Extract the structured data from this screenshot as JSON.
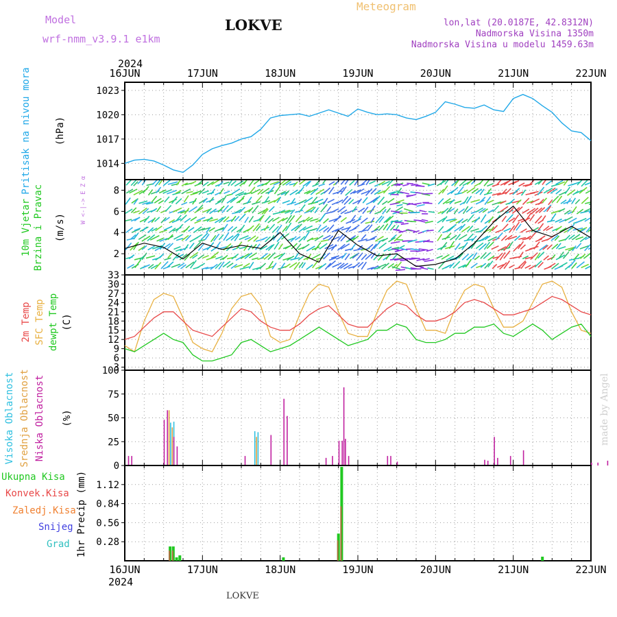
{
  "header": {
    "model_label": "Model",
    "model_name": "wrf-nmm_v3.9.1  e1km",
    "station": "LOKVE",
    "meteogram": "Meteogram",
    "lonlat": "lon,lat (20.0187E, 42.8312N)",
    "altitude": "Nadmorska Visina 1350m",
    "model_altitude": "Nadmorska Visina u modelu 1459.63m"
  },
  "footer": {
    "station": "LOKVE",
    "credit": "made by Angel"
  },
  "colors": {
    "pressure": "#20a8e8",
    "temp2m": "#e84848",
    "sfc": "#e8b040",
    "dew": "#20c820",
    "high_cloud": "#30c0e0",
    "mid_cloud": "#e0a040",
    "low_cloud": "#c020a0",
    "rain_total": "#20c820",
    "rain_conv": "#e84848",
    "rain_frozen": "#f08030",
    "snow": "#4040e0",
    "grad": "#30c0c0",
    "windline": "#000000"
  },
  "chart_data": [
    {
      "type": "line",
      "title": "Pritisak na nivou mora",
      "ylabel": "(hPa)",
      "ylim": [
        1012,
        1024
      ],
      "yticks": [
        1014,
        1017,
        1020,
        1023
      ],
      "x_day_labels": [
        "16JUN",
        "17JUN",
        "18JUN",
        "19JUN",
        "20JUN",
        "21JUN",
        "22JUN"
      ],
      "x_year_label": "2024",
      "x_hours": [
        0,
        3,
        6,
        9,
        12,
        15,
        18,
        21,
        24,
        27,
        30,
        33,
        36,
        39,
        42,
        45,
        48,
        51,
        54,
        57,
        60,
        63,
        66,
        69,
        72,
        75,
        78,
        81,
        84,
        87,
        90,
        93,
        96,
        99,
        102,
        105,
        108,
        111,
        114,
        117,
        120,
        123,
        126,
        129,
        132,
        135,
        138,
        141,
        144
      ],
      "series": [
        {
          "name": "Pritisak na nivou mora",
          "values": [
            1014.0,
            1014.4,
            1014.5,
            1014.3,
            1013.8,
            1013.2,
            1012.9,
            1013.8,
            1015.1,
            1015.8,
            1016.2,
            1016.5,
            1017.0,
            1017.3,
            1018.2,
            1019.6,
            1019.9,
            1020.0,
            1020.1,
            1019.8,
            1020.2,
            1020.6,
            1020.2,
            1019.8,
            1020.7,
            1020.3,
            1020.0,
            1020.1,
            1020.0,
            1019.6,
            1019.4,
            1019.8,
            1020.3,
            1021.6,
            1021.3,
            1020.9,
            1020.8,
            1021.2,
            1020.6,
            1020.4,
            1022.0,
            1022.5,
            1022.0,
            1021.1,
            1020.3,
            1019.0,
            1018.0,
            1017.8,
            1016.8
          ]
        }
      ]
    },
    {
      "type": "line",
      "title": "10m Vjetar Brzina i Pravac",
      "ylabel": "(m/s)",
      "direction_label": "W <-|-> E  Z  α",
      "ylim": [
        0,
        9
      ],
      "yticks": [
        2,
        4,
        6,
        8
      ],
      "x_hours": [
        0,
        6,
        12,
        18,
        24,
        30,
        36,
        42,
        48,
        54,
        60,
        66,
        72,
        78,
        84,
        90,
        96,
        102,
        108,
        114,
        120,
        126,
        132,
        138,
        144
      ],
      "series": [
        {
          "name": "10m Vjetar",
          "values": [
            2.5,
            3.0,
            2.6,
            1.5,
            3.0,
            2.4,
            2.8,
            2.5,
            4.0,
            2.0,
            1.2,
            4.2,
            2.8,
            1.8,
            2.0,
            0.8,
            1.0,
            1.5,
            3.0,
            5.0,
            6.5,
            4.2,
            3.6,
            4.6,
            3.5
          ]
        }
      ]
    },
    {
      "type": "line",
      "title": "2m Temp / SFC Temp / dewpt Temp",
      "ylabel": "(C)",
      "ylim": [
        2,
        33
      ],
      "yticks": [
        3,
        6,
        9,
        12,
        15,
        18,
        21,
        24,
        27,
        30,
        33
      ],
      "x_hours": [
        0,
        3,
        6,
        9,
        12,
        15,
        18,
        21,
        24,
        27,
        30,
        33,
        36,
        39,
        42,
        45,
        48,
        51,
        54,
        57,
        60,
        63,
        66,
        69,
        72,
        75,
        78,
        81,
        84,
        87,
        90,
        93,
        96,
        99,
        102,
        105,
        108,
        111,
        114,
        117,
        120,
        123,
        126,
        129,
        132,
        135,
        138,
        141,
        144
      ],
      "series": [
        {
          "name": "2m Temp",
          "values": [
            12,
            13,
            16,
            19,
            21,
            21,
            18,
            15,
            14,
            13,
            16,
            19,
            22,
            21,
            18,
            16,
            15,
            15,
            17,
            20,
            22,
            23,
            20,
            17,
            16,
            16,
            19,
            22,
            24,
            23,
            20,
            18,
            18,
            19,
            21,
            24,
            25,
            24,
            22,
            20,
            20,
            21,
            22,
            24,
            26,
            25,
            23,
            21,
            20
          ]
        },
        {
          "name": "SFC Temp",
          "values": [
            10,
            8,
            18,
            25,
            27,
            26,
            19,
            11,
            9,
            8,
            14,
            22,
            26,
            27,
            23,
            13,
            11,
            12,
            20,
            27,
            30,
            29,
            21,
            14,
            13,
            13,
            21,
            28,
            31,
            30,
            22,
            15,
            15,
            14,
            22,
            28,
            30,
            29,
            22,
            16,
            16,
            18,
            24,
            30,
            31,
            29,
            21,
            15,
            14
          ]
        },
        {
          "name": "dewpt Temp",
          "values": [
            9,
            8,
            10,
            12,
            14,
            12,
            11,
            7,
            5,
            5,
            6,
            7,
            11,
            12,
            10,
            8,
            9,
            10,
            12,
            14,
            16,
            14,
            12,
            10,
            11,
            12,
            15,
            15,
            17,
            16,
            12,
            11,
            11,
            12,
            14,
            14,
            16,
            16,
            17,
            14,
            13,
            15,
            17,
            15,
            12,
            14,
            16,
            17,
            13
          ]
        }
      ]
    },
    {
      "type": "bar",
      "title": "Visoka / Srednja / Niska Oblacnost",
      "ylabel": "(%)",
      "ylim": [
        0,
        100
      ],
      "yticks": [
        0,
        25,
        50,
        75,
        100
      ],
      "series": [
        {
          "name": "Visoka Oblacnost",
          "points": [
            [
              14,
              45
            ],
            [
              15,
              46
            ],
            [
              40,
              36
            ],
            [
              41,
              35
            ]
          ]
        },
        {
          "name": "Srednja Oblacnost",
          "points": [
            [
              13.5,
              58
            ],
            [
              14.5,
              40
            ],
            [
              40.5,
              30
            ]
          ]
        },
        {
          "name": "Niska Oblacnost",
          "points": [
            [
              1,
              10
            ],
            [
              2,
              10
            ],
            [
              12,
              48
            ],
            [
              13,
              58
            ],
            [
              15,
              30
            ],
            [
              16,
              20
            ],
            [
              37,
              10
            ],
            [
              45,
              32
            ],
            [
              49,
              70
            ],
            [
              50,
              52
            ],
            [
              62,
              8
            ],
            [
              64,
              10
            ],
            [
              66,
              26
            ],
            [
              67,
              26
            ],
            [
              67.5,
              82
            ],
            [
              68,
              28
            ],
            [
              69,
              10
            ],
            [
              81,
              10
            ],
            [
              82,
              10
            ],
            [
              84,
              4
            ],
            [
              111,
              6
            ],
            [
              112,
              5
            ],
            [
              114,
              30
            ],
            [
              115,
              8
            ],
            [
              119,
              10
            ],
            [
              123,
              16
            ],
            [
              144,
              3
            ],
            [
              146,
              3
            ],
            [
              149,
              5
            ]
          ]
        }
      ]
    },
    {
      "type": "bar",
      "title": "1hr Precip",
      "ylabel": "1hr Precip (mm)",
      "ylim": [
        0,
        1.4
      ],
      "yticks": [
        0.28,
        0.56,
        0.84,
        1.12
      ],
      "series": [
        {
          "name": "Ukupna Kisa",
          "points": [
            [
              14,
              0.21
            ],
            [
              15,
              0.21
            ],
            [
              16,
              0.05
            ],
            [
              17,
              0.08
            ],
            [
              49,
              0.05
            ],
            [
              66,
              0.4
            ],
            [
              67,
              1.38
            ],
            [
              129,
              0.06
            ]
          ]
        },
        {
          "name": "Konvek.Kisa",
          "points": [
            [
              14,
              0.15
            ],
            [
              15,
              0.15
            ],
            [
              66,
              0.3
            ],
            [
              67,
              0.8
            ]
          ]
        },
        {
          "name": "Zaledj.Kisa",
          "points": []
        },
        {
          "name": "Snijeg",
          "points": []
        },
        {
          "name": "Grad",
          "points": []
        }
      ]
    }
  ]
}
